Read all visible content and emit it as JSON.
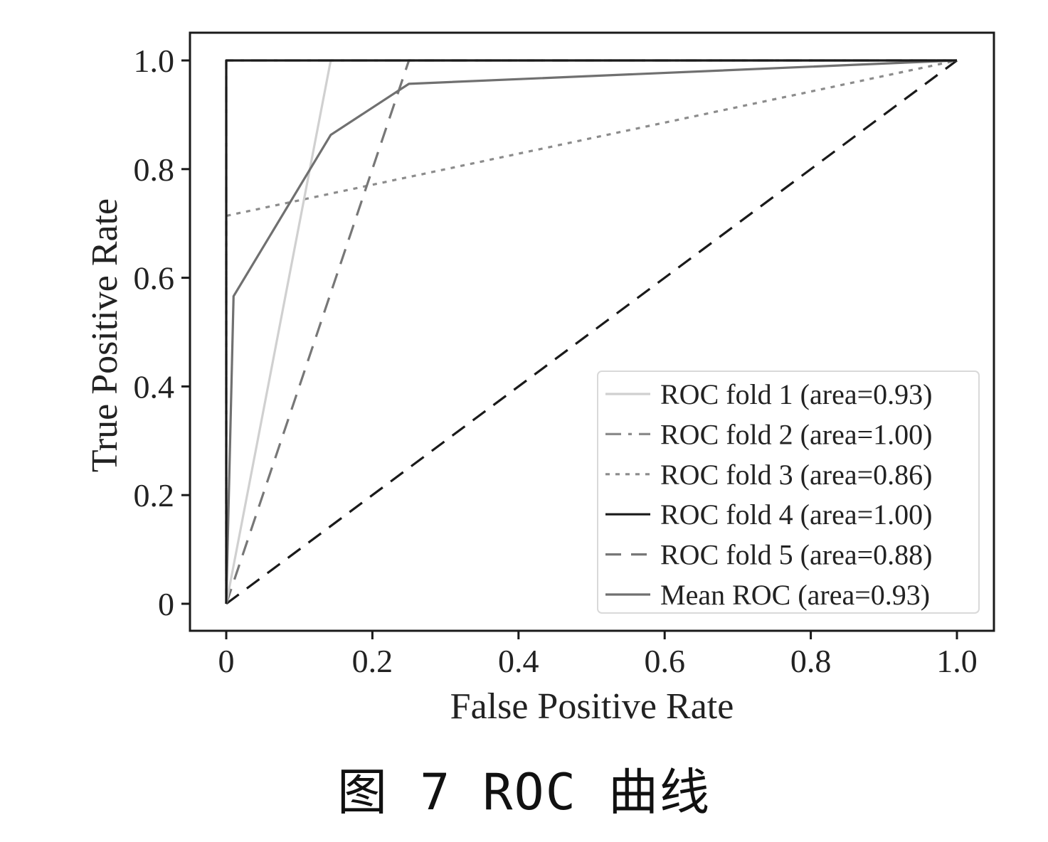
{
  "chart_data": {
    "type": "line",
    "xlabel": "False Positive Rate",
    "ylabel": "True Positive Rate",
    "xlim": [
      0,
      1
    ],
    "ylim": [
      0,
      1
    ],
    "x_ticks": [
      0,
      0.2,
      0.4,
      0.6,
      0.8,
      1.0
    ],
    "x_tick_labels": [
      "0",
      "0.2",
      "0.4",
      "0.6",
      "0.8",
      "1.0"
    ],
    "y_ticks": [
      0,
      0.2,
      0.4,
      0.6,
      0.8,
      1.0
    ],
    "y_tick_labels": [
      "0",
      "0.2",
      "0.4",
      "0.6",
      "0.8",
      "1.0"
    ],
    "grid": false,
    "legend_position": "lower-right",
    "series": [
      {
        "name": "ROC fold 1 (area=0.93)",
        "color": "#d0d0d0",
        "style": "solid",
        "x": [
          0,
          0.143,
          1.0
        ],
        "y": [
          0,
          1.0,
          1.0
        ]
      },
      {
        "name": "ROC fold 2 (area=1.00)",
        "color": "#8c8c8c",
        "style": "dashdot",
        "x": [
          0,
          0,
          1.0
        ],
        "y": [
          0,
          1.0,
          1.0
        ]
      },
      {
        "name": "ROC fold 3 (area=0.86)",
        "color": "#8c8c8c",
        "style": "dotted",
        "x": [
          0,
          0,
          1.0
        ],
        "y": [
          0,
          0.714,
          1.0
        ]
      },
      {
        "name": "ROC fold 4 (area=1.00)",
        "color": "#1a1a1a",
        "style": "solid",
        "x": [
          0,
          0,
          1.0
        ],
        "y": [
          0,
          1.0,
          1.0
        ]
      },
      {
        "name": "ROC fold 5 (area=0.88)",
        "color": "#777777",
        "style": "dashed",
        "x": [
          0,
          0.25,
          1.0
        ],
        "y": [
          0,
          1.0,
          1.0
        ]
      },
      {
        "name": "Mean ROC (area=0.93)",
        "color": "#707070",
        "style": "solid",
        "x": [
          0,
          0.01,
          0.143,
          0.25,
          1.0
        ],
        "y": [
          0,
          0.566,
          0.863,
          0.957,
          1.0
        ]
      }
    ],
    "reference_line": {
      "x": [
        0,
        1
      ],
      "y": [
        0,
        1
      ],
      "color": "#1a1a1a",
      "style": "dashed"
    }
  },
  "caption": "图 7  ROC 曲线"
}
